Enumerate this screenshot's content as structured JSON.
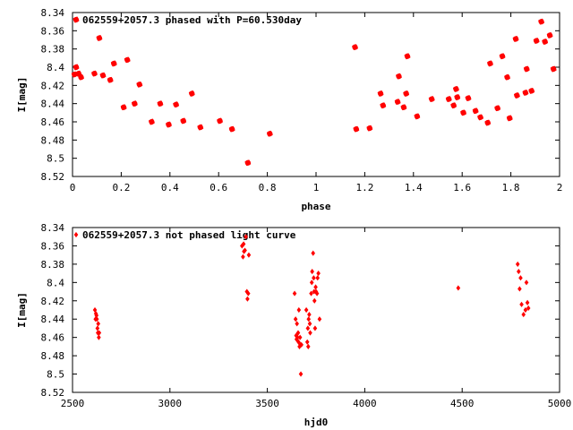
{
  "chart_data": [
    {
      "type": "scatter",
      "title": "062559+2057.3 phased with P=60.530day",
      "xlabel": "phase",
      "ylabel": "I[mag]",
      "xlim": [
        0,
        2
      ],
      "ylim": [
        8.52,
        8.34
      ],
      "y_inverted": true,
      "xticks": [
        "0",
        "0.2",
        "0.4",
        "0.6",
        "0.8",
        "1",
        "1.2",
        "1.4",
        "1.6",
        "1.8",
        "2"
      ],
      "yticks": [
        "8.34",
        "8.36",
        "8.38",
        "8.4",
        "8.42",
        "8.44",
        "8.46",
        "8.48",
        "8.5",
        "8.52"
      ],
      "marker": "star",
      "color": "#ff0000",
      "legend": "top-left",
      "x": [
        0.008,
        0.015,
        0.025,
        0.035,
        0.09,
        0.11,
        0.125,
        0.155,
        0.17,
        0.21,
        0.225,
        0.255,
        0.275,
        0.325,
        0.36,
        0.395,
        0.425,
        0.455,
        0.49,
        0.525,
        0.605,
        0.655,
        0.72,
        0.81,
        1.16,
        1.165,
        1.22,
        1.265,
        1.275,
        1.335,
        1.34,
        1.36,
        1.37,
        1.375,
        1.415,
        1.475,
        1.545,
        1.565,
        1.575,
        1.58,
        1.605,
        1.625,
        1.655,
        1.675,
        1.705,
        1.715,
        1.745,
        1.765,
        1.785,
        1.795,
        1.82,
        1.825,
        1.86,
        1.865,
        1.885,
        1.905,
        1.925,
        1.94,
        1.96,
        1.975
      ],
      "y": [
        8.408,
        8.4,
        8.407,
        8.411,
        8.407,
        8.368,
        8.409,
        8.414,
        8.396,
        8.444,
        8.392,
        8.44,
        8.419,
        8.46,
        8.44,
        8.463,
        8.441,
        8.459,
        8.429,
        8.466,
        8.459,
        8.468,
        8.505,
        8.473,
        8.378,
        8.468,
        8.467,
        8.429,
        8.442,
        8.438,
        8.41,
        8.444,
        8.429,
        8.388,
        8.454,
        8.435,
        8.435,
        8.442,
        8.424,
        8.433,
        8.45,
        8.434,
        8.448,
        8.455,
        8.461,
        8.396,
        8.445,
        8.388,
        8.411,
        8.456,
        8.369,
        8.431,
        8.428,
        8.402,
        8.426,
        8.371,
        8.35,
        8.372,
        8.365,
        8.402
      ]
    },
    {
      "type": "scatter",
      "title": "062559+2057.3 not phased light curve",
      "xlabel": "hjd0",
      "ylabel": "I[mag]",
      "xlim": [
        2500,
        5000
      ],
      "ylim": [
        8.52,
        8.34
      ],
      "y_inverted": true,
      "xticks": [
        "2500",
        "3000",
        "3500",
        "4000",
        "4500",
        "5000"
      ],
      "yticks": [
        "8.34",
        "8.36",
        "8.38",
        "8.4",
        "8.42",
        "8.44",
        "8.46",
        "8.48",
        "8.5",
        "8.52"
      ],
      "marker": "diamond",
      "color": "#ff0000",
      "legend": "top-left",
      "x": [
        2615,
        2618,
        2620,
        2623,
        2625,
        2628,
        2630,
        2632,
        2635,
        2637,
        3370,
        3375,
        3378,
        3380,
        3385,
        3390,
        3395,
        3398,
        3402,
        3405,
        3640,
        3645,
        3648,
        3650,
        3652,
        3655,
        3658,
        3660,
        3662,
        3665,
        3668,
        3670,
        3672,
        3675,
        3700,
        3705,
        3708,
        3710,
        3712,
        3715,
        3718,
        3720,
        3725,
        3728,
        3730,
        3735,
        3738,
        3740,
        3742,
        3745,
        3748,
        3750,
        3755,
        3758,
        3762,
        3768,
        4480,
        4785,
        4790,
        4795,
        4800,
        4805,
        4815,
        4825,
        4830,
        4835,
        4840
      ],
      "y": [
        8.43,
        8.44,
        8.434,
        8.436,
        8.44,
        8.45,
        8.455,
        8.445,
        8.46,
        8.455,
        8.36,
        8.372,
        8.358,
        8.366,
        8.365,
        8.35,
        8.41,
        8.418,
        8.412,
        8.37,
        8.412,
        8.44,
        8.458,
        8.462,
        8.445,
        8.46,
        8.455,
        8.465,
        8.43,
        8.47,
        8.46,
        8.468,
        8.5,
        8.468,
        8.43,
        8.465,
        8.45,
        8.47,
        8.44,
        8.435,
        8.445,
        8.455,
        8.412,
        8.4,
        8.388,
        8.368,
        8.395,
        8.41,
        8.42,
        8.45,
        8.405,
        8.41,
        8.412,
        8.395,
        8.39,
        8.44,
        8.406,
        8.38,
        8.388,
        8.407,
        8.395,
        8.424,
        8.435,
        8.43,
        8.4,
        8.422,
        8.428
      ]
    }
  ]
}
